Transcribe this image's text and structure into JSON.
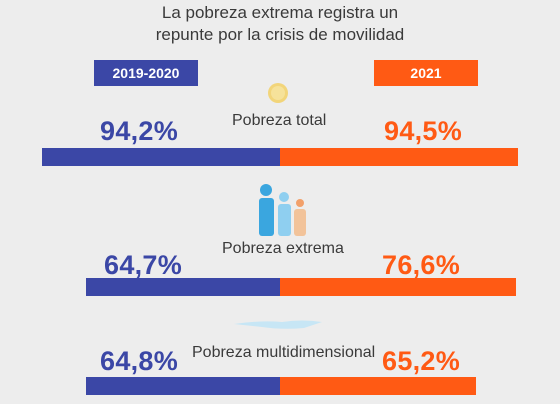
{
  "chart_data": {
    "type": "bar",
    "title": "La pobreza extrema registra un repunte por la crisis de movilidad",
    "title_lines": [
      "La pobreza extrema registra un",
      "repunte por la crisis de movilidad"
    ],
    "series": [
      {
        "name": "2019-2020",
        "color": "#3b47a6",
        "values": [
          94.2,
          64.7,
          64.8
        ],
        "labels": [
          "94,2%",
          "64,7%",
          "64,8%"
        ]
      },
      {
        "name": "2021",
        "color": "#ff5a14",
        "values": [
          94.5,
          76.6,
          65.2
        ],
        "labels": [
          "94,5%",
          "76,6%",
          "65,2%"
        ]
      }
    ],
    "categories": [
      "Pobreza total",
      "Pobreza extrema",
      "Pobreza multidimensional"
    ],
    "icons": [
      "coin-icon",
      "family-icon",
      "cloud-shape-icon"
    ]
  }
}
